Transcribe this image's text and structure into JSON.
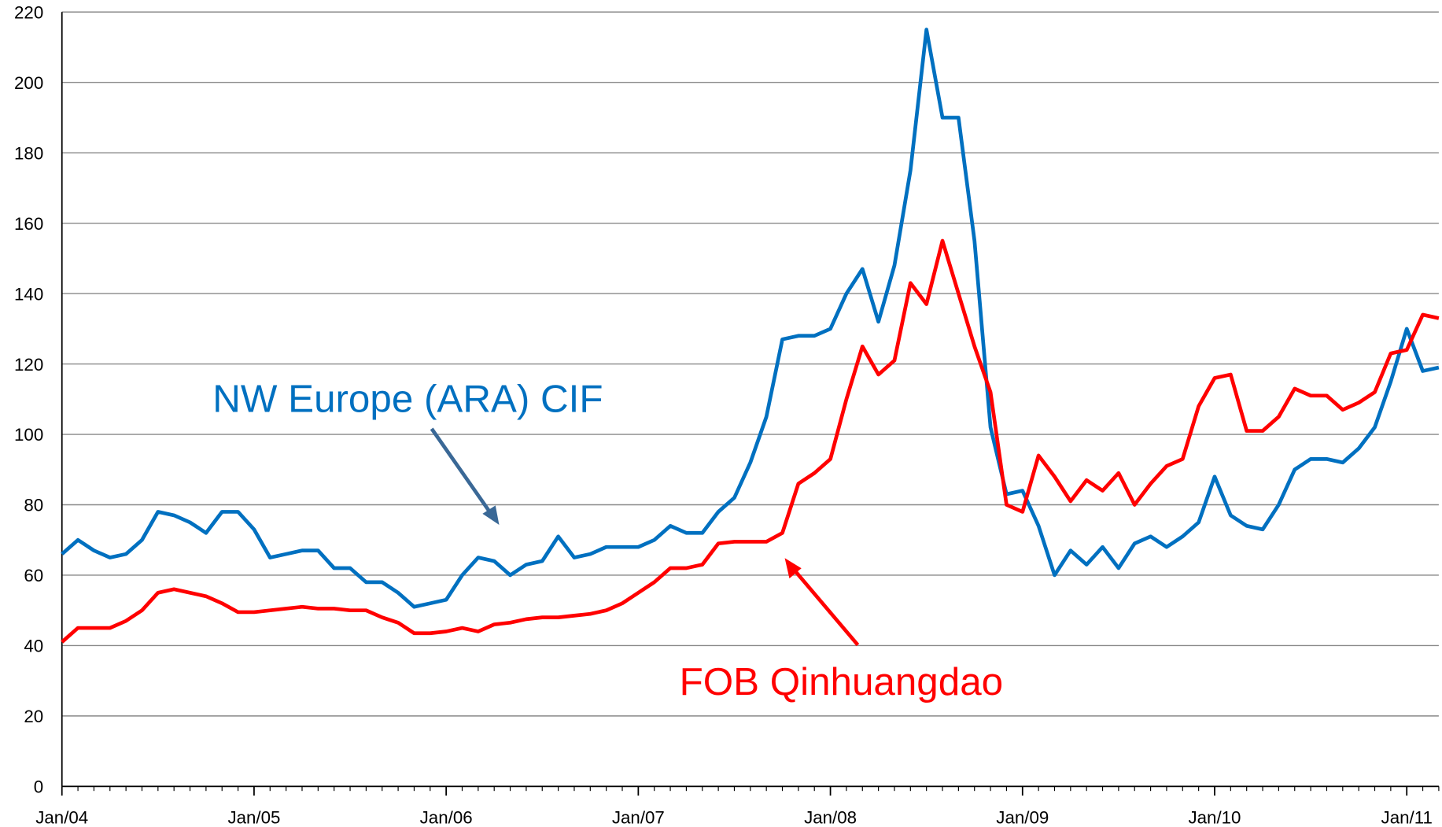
{
  "chart_data": {
    "type": "line",
    "x": [
      "2004-01",
      "2004-02",
      "2004-03",
      "2004-04",
      "2004-05",
      "2004-06",
      "2004-07",
      "2004-08",
      "2004-09",
      "2004-10",
      "2004-11",
      "2004-12",
      "2005-01",
      "2005-02",
      "2005-03",
      "2005-04",
      "2005-05",
      "2005-06",
      "2005-07",
      "2005-08",
      "2005-09",
      "2005-10",
      "2005-11",
      "2005-12",
      "2006-01",
      "2006-02",
      "2006-03",
      "2006-04",
      "2006-05",
      "2006-06",
      "2006-07",
      "2006-08",
      "2006-09",
      "2006-10",
      "2006-11",
      "2006-12",
      "2007-01",
      "2007-02",
      "2007-03",
      "2007-04",
      "2007-05",
      "2007-06",
      "2007-07",
      "2007-08",
      "2007-09",
      "2007-10",
      "2007-11",
      "2007-12",
      "2008-01",
      "2008-02",
      "2008-03",
      "2008-04",
      "2008-05",
      "2008-06",
      "2008-07",
      "2008-08",
      "2008-09",
      "2008-10",
      "2008-11",
      "2008-12",
      "2009-01",
      "2009-02",
      "2009-03",
      "2009-04",
      "2009-05",
      "2009-06",
      "2009-07",
      "2009-08",
      "2009-09",
      "2009-10",
      "2009-11",
      "2009-12",
      "2010-01",
      "2010-02",
      "2010-03",
      "2010-04",
      "2010-05",
      "2010-06",
      "2010-07",
      "2010-08",
      "2010-09",
      "2010-10",
      "2010-11",
      "2010-12",
      "2011-01",
      "2011-02",
      "2011-03"
    ],
    "series": [
      {
        "name": "NW Europe (ARA) CIF",
        "color": "#0070c0",
        "values": [
          66,
          70,
          67,
          65,
          66,
          70,
          78,
          77,
          75,
          72,
          78,
          78,
          73,
          65,
          66,
          67,
          67,
          62,
          62,
          58,
          58,
          55,
          51,
          52,
          53,
          60,
          65,
          64,
          60,
          63,
          64,
          71,
          65,
          66,
          68,
          68,
          68,
          70,
          74,
          72,
          72,
          78,
          82,
          92,
          105,
          127,
          128,
          128,
          130,
          140,
          147,
          132,
          148,
          175,
          215,
          190,
          190,
          155,
          102,
          83,
          84,
          74,
          60,
          67,
          63,
          68,
          62,
          69,
          71,
          68,
          71,
          75,
          88,
          77,
          74,
          73,
          80,
          90,
          93,
          93,
          92,
          96,
          102,
          115,
          130,
          118,
          119
        ]
      },
      {
        "name": "FOB Qinhuangdao",
        "color": "#ff0000",
        "values": [
          41,
          45,
          45,
          45,
          47,
          50,
          55,
          56,
          55,
          54,
          52,
          49.5,
          49.5,
          50,
          50.5,
          51,
          50.5,
          50.5,
          50,
          50,
          48,
          46.5,
          43.5,
          43.5,
          44,
          45,
          44,
          46,
          46.5,
          47.5,
          48,
          48,
          48.5,
          49,
          50,
          52,
          55,
          58,
          62,
          62,
          63,
          69,
          69.5,
          69.5,
          69.5,
          72,
          86,
          89,
          93,
          110,
          125,
          117,
          121,
          143,
          137,
          155,
          140,
          125,
          112,
          80,
          78,
          94,
          88,
          81,
          87,
          84,
          89,
          80,
          86,
          91,
          93,
          108,
          116,
          117,
          101,
          101,
          105,
          113,
          111,
          111,
          107,
          109,
          112,
          123,
          124,
          134,
          133
        ]
      }
    ],
    "xticks": [
      {
        "value": "2004-01",
        "label": "Jan/04"
      },
      {
        "value": "2005-01",
        "label": "Jan/05"
      },
      {
        "value": "2006-01",
        "label": "Jan/06"
      },
      {
        "value": "2007-01",
        "label": "Jan/07"
      },
      {
        "value": "2008-01",
        "label": "Jan/08"
      },
      {
        "value": "2009-01",
        "label": "Jan/09"
      },
      {
        "value": "2010-01",
        "label": "Jan/10"
      },
      {
        "value": "2011-01",
        "label": "Jan/11"
      }
    ],
    "ylim": [
      0,
      220
    ],
    "yticks": [
      0,
      20,
      40,
      60,
      80,
      100,
      120,
      140,
      160,
      180,
      200,
      220
    ],
    "grid": true
  }
}
